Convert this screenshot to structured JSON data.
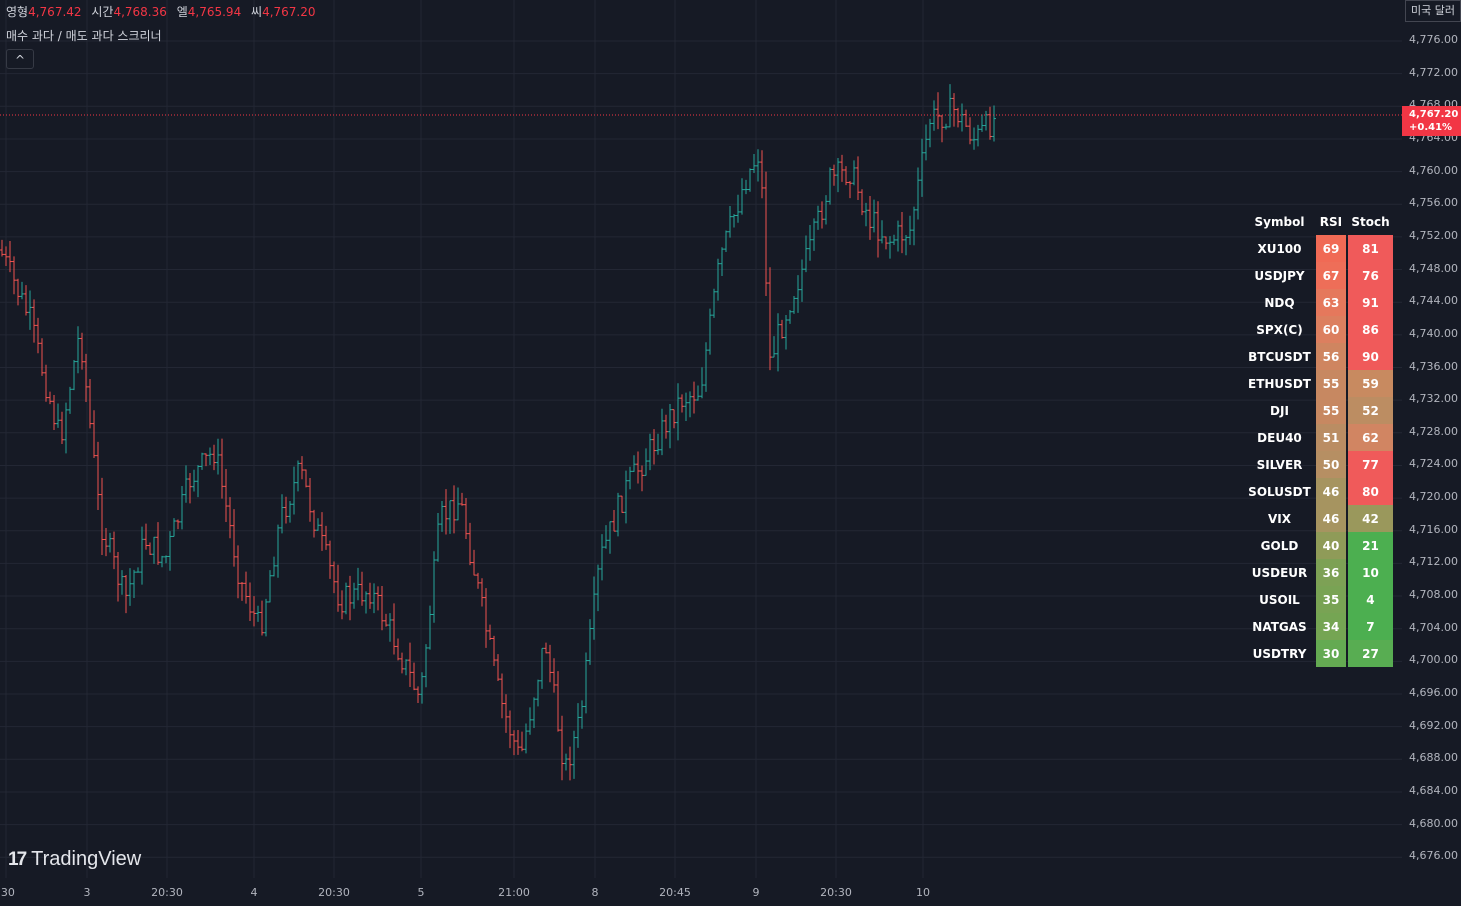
{
  "legend": {
    "open_label": "영형",
    "open_value": "4,767.42",
    "high_label": "시간",
    "high_value": "4,768.36",
    "low_label": "엘",
    "low_value": "4,765.94",
    "close_label": "씨",
    "close_value": "4,767.20"
  },
  "indicator": {
    "title": "매수 과다 / 매도 과다 스크리너",
    "collapse_icon": "^"
  },
  "currency_label": "미국 달러",
  "last_price": {
    "price": "4,767.20",
    "change": "+0.41%"
  },
  "price_axis": [
    "4,776.00",
    "4,772.00",
    "4,768.00",
    "4,764.00",
    "4,760.00",
    "4,756.00",
    "4,752.00",
    "4,748.00",
    "4,744.00",
    "4,740.00",
    "4,736.00",
    "4,732.00",
    "4,728.00",
    "4,724.00",
    "4,720.00",
    "4,716.00",
    "4,712.00",
    "4,708.00",
    "4,704.00",
    "4,700.00",
    "4,696.00",
    "4,692.00",
    "4,688.00",
    "4,684.00",
    "4,680.00",
    "4,676.00"
  ],
  "time_axis": [
    ":30",
    "3",
    "20:30",
    "4",
    "20:30",
    "5",
    "21:00",
    "8",
    "20:45",
    "9",
    "20:30",
    "10"
  ],
  "watermark": "TradingView",
  "screener": {
    "headers": {
      "symbol": "Symbol",
      "rsi": "RSI",
      "stoch": "Stoch"
    },
    "rows": [
      {
        "symbol": "XU100",
        "rsi": "69",
        "stoch": "81",
        "rsi_color": "#f06a55",
        "stoch_color": "#f05a5a"
      },
      {
        "symbol": "USDJPY",
        "rsi": "67",
        "stoch": "76",
        "rsi_color": "#ee6e58",
        "stoch_color": "#f05a5a"
      },
      {
        "symbol": "NDQ",
        "rsi": "63",
        "stoch": "91",
        "rsi_color": "#e5785c",
        "stoch_color": "#f05a5a"
      },
      {
        "symbol": "SPX(C)",
        "rsi": "60",
        "stoch": "86",
        "rsi_color": "#dc7f5f",
        "stoch_color": "#f05a5a"
      },
      {
        "symbol": "BTCUSDT",
        "rsi": "56",
        "stoch": "90",
        "rsi_color": "#cf8560",
        "stoch_color": "#f05a5a"
      },
      {
        "symbol": "ETHUSDT",
        "rsi": "55",
        "stoch": "59",
        "rsi_color": "#c78861",
        "stoch_color": "#c88a60"
      },
      {
        "symbol": "DJI",
        "rsi": "55",
        "stoch": "52",
        "rsi_color": "#c78861",
        "stoch_color": "#bc8d62"
      },
      {
        "symbol": "DEU40",
        "rsi": "51",
        "stoch": "62",
        "rsi_color": "#ba8d63",
        "stoch_color": "#d18562"
      },
      {
        "symbol": "SILVER",
        "rsi": "50",
        "stoch": "77",
        "rsi_color": "#b68f63",
        "stoch_color": "#f05a5a"
      },
      {
        "symbol": "SOLUSDT",
        "rsi": "46",
        "stoch": "80",
        "rsi_color": "#a69460",
        "stoch_color": "#f05a5a"
      },
      {
        "symbol": "VIX",
        "rsi": "46",
        "stoch": "42",
        "rsi_color": "#a69460",
        "stoch_color": "#9a985c"
      },
      {
        "symbol": "GOLD",
        "rsi": "40",
        "stoch": "21",
        "rsi_color": "#8f9b58",
        "stoch_color": "#4caf50"
      },
      {
        "symbol": "USDEUR",
        "rsi": "36",
        "stoch": "10",
        "rsi_color": "#7da155",
        "stoch_color": "#4caf50"
      },
      {
        "symbol": "USOIL",
        "rsi": "35",
        "stoch": "4",
        "rsi_color": "#79a354",
        "stoch_color": "#4caf50"
      },
      {
        "symbol": "NATGAS",
        "rsi": "34",
        "stoch": "7",
        "rsi_color": "#75a553",
        "stoch_color": "#4caf50"
      },
      {
        "symbol": "USDTRY",
        "rsi": "30",
        "stoch": "27",
        "rsi_color": "#64aa52",
        "stoch_color": "#58ad52"
      }
    ]
  },
  "colors": {
    "up": "#26a69a",
    "down": "#ef5350",
    "background": "#161a25",
    "grid": "#232734",
    "last_price": "#f23645"
  }
}
